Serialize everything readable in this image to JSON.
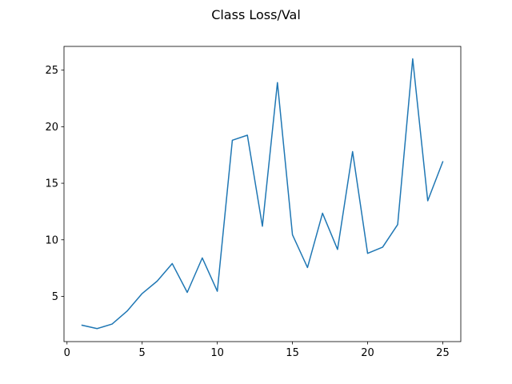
{
  "figure": {
    "title": "Class Loss/Val"
  },
  "chart_data": {
    "type": "line",
    "title": "Class Loss/Val",
    "xlabel": "",
    "ylabel": "",
    "xlim": [
      -0.2,
      26.2
    ],
    "ylim": [
      1.0,
      27.1
    ],
    "xticks": [
      0,
      5,
      10,
      15,
      20,
      25
    ],
    "yticks": [
      5,
      10,
      15,
      20,
      25
    ],
    "grid": false,
    "legend": "none",
    "series": [
      {
        "color": "#1f77b4",
        "x": [
          1,
          2,
          3,
          4,
          5,
          6,
          7,
          8,
          9,
          10,
          11,
          12,
          13,
          14,
          15,
          16,
          17,
          18,
          19,
          20,
          21,
          22,
          23,
          24,
          25
        ],
        "y": [
          2.45,
          2.15,
          2.55,
          3.7,
          5.25,
          6.35,
          7.9,
          5.35,
          8.4,
          5.45,
          18.8,
          19.25,
          11.2,
          23.9,
          10.45,
          7.55,
          12.35,
          9.15,
          17.8,
          8.8,
          9.35,
          11.35,
          26.0,
          13.45,
          16.9
        ]
      }
    ]
  }
}
